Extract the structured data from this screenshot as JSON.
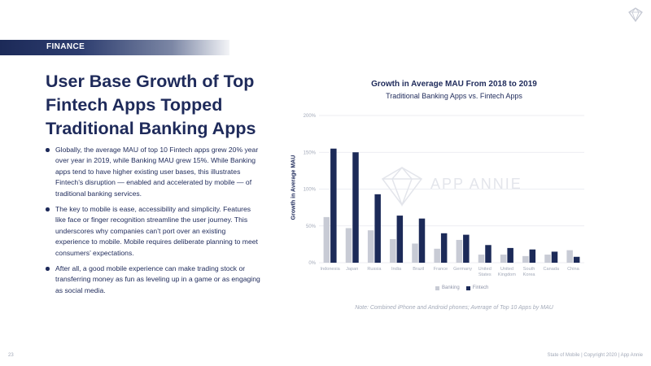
{
  "section_label": "FINANCE",
  "title": "User Base Growth of Top Fintech Apps Topped Traditional Banking Apps",
  "bullets": [
    "Globally, the average MAU of top 10 Fintech apps grew 20% year over year in 2019, while Banking MAU grew 15%. While Banking apps tend to have higher existing user bases, this illustrates Fintech’s disruption — enabled and accelerated by mobile — of traditional banking services.",
    "The key to mobile is ease, accessibility and simplicity. Features like face or finger recognition streamline the user journey. This underscores why companies can’t port over an existing experience to mobile. Mobile requires deliberate planning to meet consumers’ expectations.",
    "After all, a good mobile experience can make trading stock or transferring money as fun as leveling up in a game or as engaging as social media."
  ],
  "watermark": "APP ANNIE",
  "note": "Note: Combined iPhone and Android phones; Average of Top 10 Apps by MAU",
  "page_number": "23",
  "footer": "State of Mobile  |  Copyright 2020  |  App Annie",
  "colors": {
    "banking": "#c8cbd5",
    "fintech": "#1c2a58",
    "accent": "#1e2a5a",
    "grid": "#e6e8ee"
  },
  "chart_data": {
    "type": "bar",
    "title": "Growth in Average MAU From 2018 to 2019",
    "subtitle": "Traditional Banking Apps vs. Fintech Apps",
    "ylabel": "Growth in Average MAU",
    "xlabel": "",
    "ylim": [
      0,
      200
    ],
    "yticks": [
      "0%",
      "50%",
      "100%",
      "150%",
      "200%"
    ],
    "ytick_values": [
      0,
      50,
      100,
      150,
      200
    ],
    "categories": [
      [
        "Indonesia"
      ],
      [
        "Japan"
      ],
      [
        "Russia"
      ],
      [
        "India"
      ],
      [
        "Brazil"
      ],
      [
        "France"
      ],
      [
        "Germany"
      ],
      [
        "United",
        "States"
      ],
      [
        "United",
        "Kingdom"
      ],
      [
        "South",
        "Korea"
      ],
      [
        "Canada"
      ],
      [
        "China"
      ]
    ],
    "series": [
      {
        "name": "Banking",
        "values": [
          62,
          47,
          44,
          32,
          26,
          19,
          31,
          11,
          11,
          9,
          11,
          17
        ]
      },
      {
        "name": "Fintech",
        "values": [
          155,
          150,
          93,
          64,
          60,
          40,
          38,
          24,
          20,
          18,
          15,
          8
        ]
      }
    ],
    "legend_position": "bottom",
    "grid": true
  }
}
